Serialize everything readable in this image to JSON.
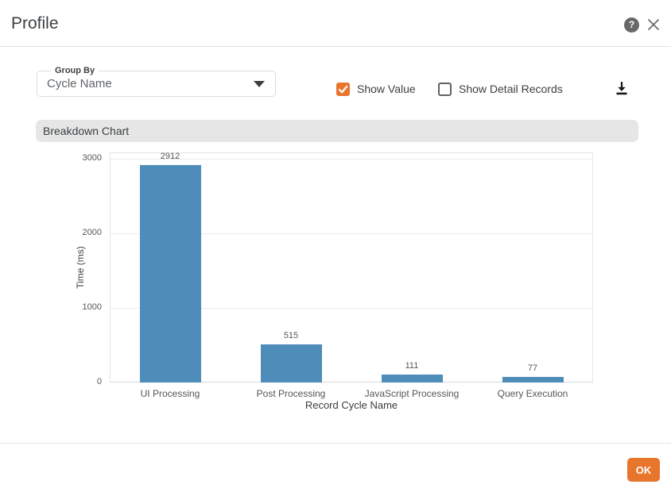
{
  "dialog": {
    "title": "Profile"
  },
  "controls": {
    "group_by": {
      "label": "Group By",
      "value": "Cycle Name"
    },
    "show_value": {
      "label": "Show Value",
      "checked": true
    },
    "show_detail_records": {
      "label": "Show Detail Records",
      "checked": false
    }
  },
  "section": {
    "title": "Breakdown Chart"
  },
  "chart_data": {
    "type": "bar",
    "categories": [
      "UI Processing",
      "Post Processing",
      "JavaScript Processing",
      "Query Execution"
    ],
    "values": [
      2912,
      515,
      111,
      77
    ],
    "title": "Breakdown Chart",
    "xlabel": "Record Cycle Name",
    "ylabel": "Time (ms)",
    "ylim": [
      0,
      3000
    ],
    "yticks": [
      0,
      1000,
      2000,
      3000
    ],
    "grid": true,
    "show_values": true,
    "legend": "none",
    "bar_color": "#4e8cba"
  },
  "footer": {
    "ok_label": "OK"
  },
  "colors": {
    "accent_orange": "#e8752c",
    "bar_blue": "#4e8cba",
    "section_bg": "#e6e6e6",
    "icon_gray": "#686868",
    "divider": "#e4e4e4"
  }
}
